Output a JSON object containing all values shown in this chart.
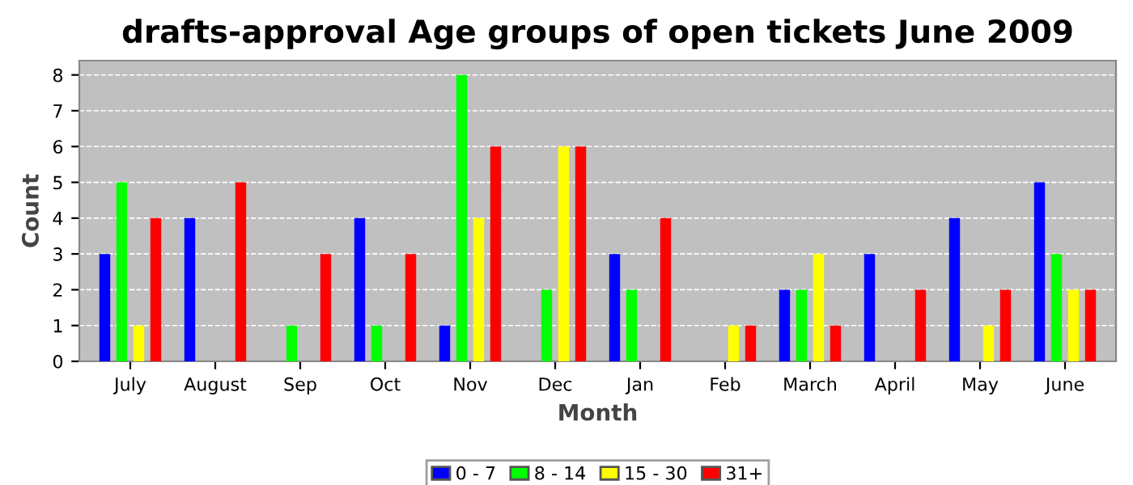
{
  "chart_data": {
    "type": "bar",
    "title": "drafts-approval Age groups of open tickets June 2009",
    "xlabel": "Month",
    "ylabel": "Count",
    "categories": [
      "July",
      "August",
      "Sep",
      "Oct",
      "Nov",
      "Dec",
      "Jan",
      "Feb",
      "March",
      "April",
      "May",
      "June"
    ],
    "series": [
      {
        "name": "0 - 7",
        "color": "#0000ff",
        "values": [
          3,
          4,
          0,
          4,
          1,
          0,
          3,
          0,
          2,
          3,
          4,
          5
        ]
      },
      {
        "name": "8 - 14",
        "color": "#00ff00",
        "values": [
          5,
          0,
          1,
          1,
          8,
          2,
          2,
          0,
          2,
          0,
          0,
          3
        ]
      },
      {
        "name": "15 - 30",
        "color": "#ffff00",
        "values": [
          1,
          0,
          0,
          0,
          4,
          6,
          0,
          1,
          3,
          0,
          1,
          2
        ]
      },
      {
        "name": "31+",
        "color": "#ff0000",
        "values": [
          4,
          5,
          3,
          3,
          6,
          6,
          4,
          1,
          1,
          2,
          2,
          2
        ]
      }
    ],
    "ylim": [
      0,
      8.4
    ],
    "yticks": [
      0,
      1,
      2,
      3,
      4,
      5,
      6,
      7,
      8
    ],
    "grid": "y",
    "legend": "bottom"
  }
}
